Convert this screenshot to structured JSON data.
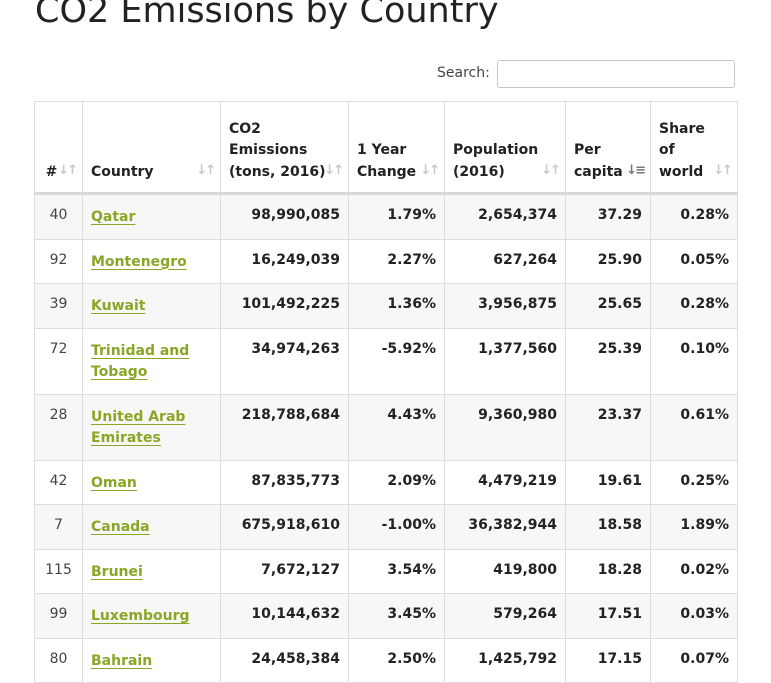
{
  "page": {
    "title": "CO2 Emissions by Country"
  },
  "search": {
    "label": "Search:",
    "placeholder": "",
    "value": ""
  },
  "table": {
    "headers": [
      "#",
      "Country",
      "CO2 Emissions (tons, 2016)",
      "1 Year Change",
      "Population (2016)",
      "Per capita",
      "Share of world"
    ],
    "sorted_column": "Per capita",
    "sort_direction": "descending",
    "rows": [
      {
        "rank": "40",
        "country": "Qatar",
        "emissions": "98,990,085",
        "change": "1.79%",
        "population": "2,654,374",
        "per_capita": "37.29",
        "share": "0.28%"
      },
      {
        "rank": "92",
        "country": "Montenegro",
        "emissions": "16,249,039",
        "change": "2.27%",
        "population": "627,264",
        "per_capita": "25.90",
        "share": "0.05%"
      },
      {
        "rank": "39",
        "country": "Kuwait",
        "emissions": "101,492,225",
        "change": "1.36%",
        "population": "3,956,875",
        "per_capita": "25.65",
        "share": "0.28%"
      },
      {
        "rank": "72",
        "country": "Trinidad and Tobago",
        "emissions": "34,974,263",
        "change": "-5.92%",
        "population": "1,377,560",
        "per_capita": "25.39",
        "share": "0.10%"
      },
      {
        "rank": "28",
        "country": "United Arab Emirates",
        "emissions": "218,788,684",
        "change": "4.43%",
        "population": "9,360,980",
        "per_capita": "23.37",
        "share": "0.61%"
      },
      {
        "rank": "42",
        "country": "Oman",
        "emissions": "87,835,773",
        "change": "2.09%",
        "population": "4,479,219",
        "per_capita": "19.61",
        "share": "0.25%"
      },
      {
        "rank": "7",
        "country": "Canada",
        "emissions": "675,918,610",
        "change": "-1.00%",
        "population": "36,382,944",
        "per_capita": "18.58",
        "share": "1.89%"
      },
      {
        "rank": "115",
        "country": "Brunei",
        "emissions": "7,672,127",
        "change": "3.54%",
        "population": "419,800",
        "per_capita": "18.28",
        "share": "0.02%"
      },
      {
        "rank": "99",
        "country": "Luxembourg",
        "emissions": "10,144,632",
        "change": "3.45%",
        "population": "579,264",
        "per_capita": "17.51",
        "share": "0.03%"
      },
      {
        "rank": "80",
        "country": "Bahrain",
        "emissions": "24,458,384",
        "change": "2.50%",
        "population": "1,425,792",
        "per_capita": "17.15",
        "share": "0.07%"
      }
    ]
  },
  "colors": {
    "link": "#8aa626",
    "stripe": "#f7f7f7",
    "border": "#dddddd"
  },
  "icons": {
    "sort": "sort-arrows-icon",
    "sorted_desc": "sort-descending-icon"
  }
}
